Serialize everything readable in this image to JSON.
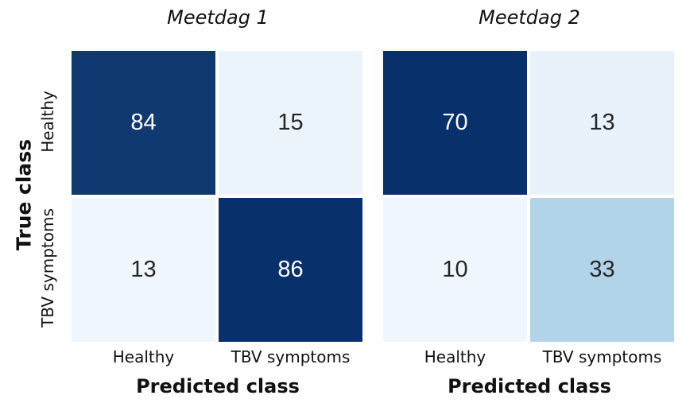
{
  "chart_data": {
    "type": "heatmap",
    "ylabel": "True class",
    "row_labels": [
      "Healthy",
      "TBV symptoms"
    ],
    "xlabel": "Predicted class",
    "col_labels": [
      "Healthy",
      "TBV symptoms"
    ],
    "colormap": "Blues",
    "panels": [
      {
        "title": "Meetdag 1",
        "values": [
          [
            84,
            15
          ],
          [
            13,
            86
          ]
        ]
      },
      {
        "title": "Meetdag 2",
        "values": [
          [
            70,
            13
          ],
          [
            10,
            33
          ]
        ]
      }
    ]
  },
  "colors": {
    "scale_low": "#f0f6fd",
    "scale_high": "#08306b",
    "text_on_dark": "#ffffff",
    "text_on_light": "#262626"
  }
}
